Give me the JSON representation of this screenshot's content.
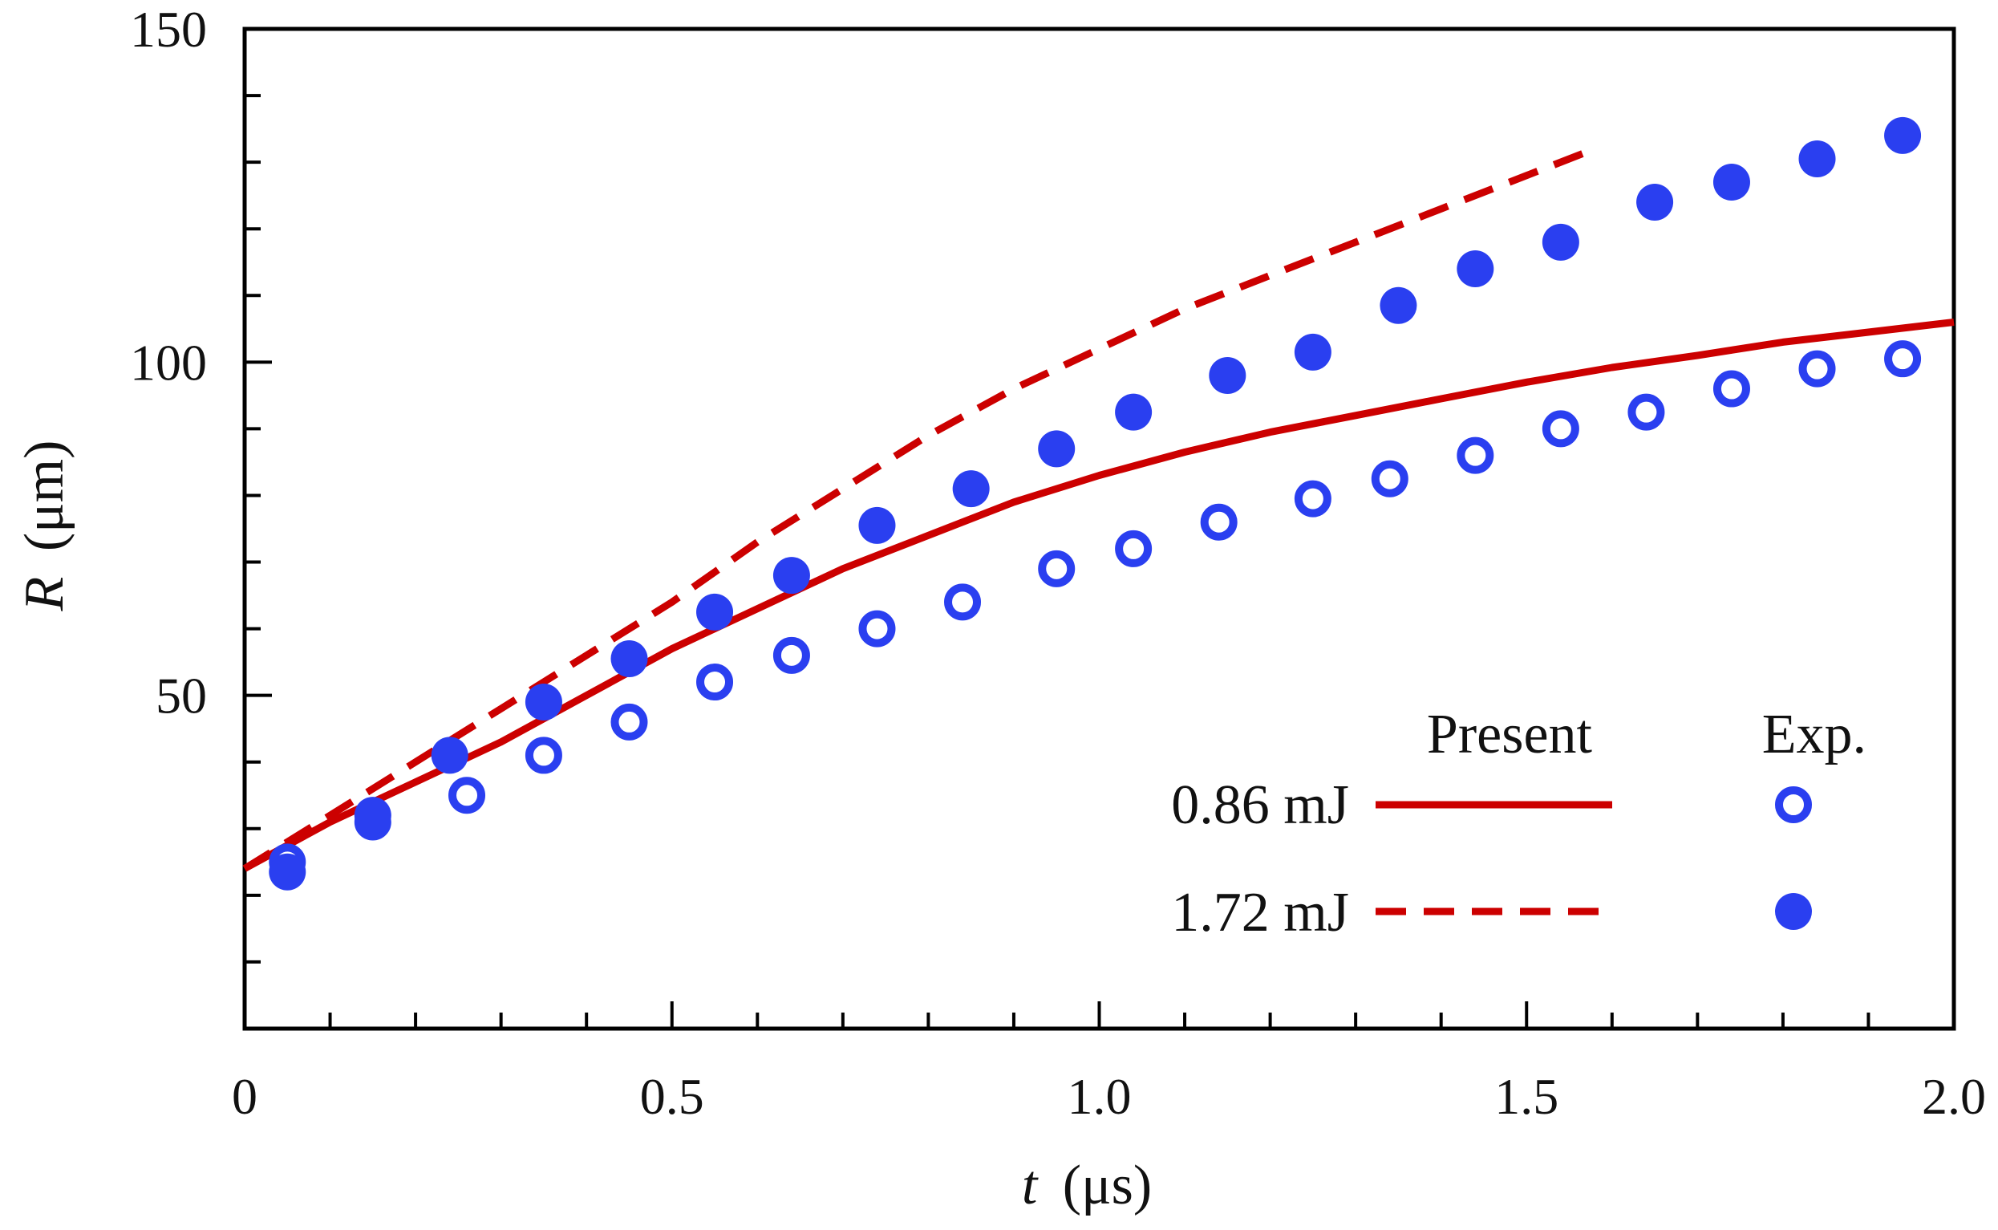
{
  "chart_data": {
    "type": "line",
    "title": "",
    "xlabel": {
      "symbol": "t",
      "unit": "(μs)"
    },
    "ylabel": {
      "symbol": "R",
      "unit": "(μm)"
    },
    "xlim": [
      0,
      2.0
    ],
    "ylim": [
      0,
      150
    ],
    "x_tick_labels": [
      "0",
      "0.5",
      "1.0",
      "1.5",
      "2.0"
    ],
    "x_tick_values": [
      0,
      0.5,
      1.0,
      1.5,
      2.0
    ],
    "y_tick_labels": [
      "50",
      "100",
      "150"
    ],
    "y_tick_values": [
      50,
      100,
      150
    ],
    "grid": false,
    "legend": {
      "placement": "bottom-right",
      "header_present": "Present",
      "header_exp": "Exp.",
      "rows": [
        "0.86 mJ",
        "1.72 mJ"
      ]
    },
    "colors": {
      "model": "#cc0000",
      "experiment": "#2a3ff0"
    },
    "series": [
      {
        "name": "0.86 mJ",
        "kind": "present",
        "style": "solid",
        "x": [
          0.0,
          0.1,
          0.2,
          0.3,
          0.4,
          0.5,
          0.6,
          0.7,
          0.8,
          0.9,
          1.0,
          1.1,
          1.2,
          1.3,
          1.4,
          1.5,
          1.6,
          1.7,
          1.8,
          1.9,
          2.0
        ],
        "y": [
          24,
          31,
          37,
          43,
          50,
          57,
          63,
          69,
          74,
          79,
          83,
          86.5,
          89.5,
          92,
          94.5,
          97,
          99.2,
          101,
          103,
          104.5,
          106
        ]
      },
      {
        "name": "1.72 mJ",
        "kind": "present",
        "style": "dashed",
        "x": [
          0.0,
          0.1,
          0.2,
          0.3,
          0.4,
          0.5,
          0.6,
          0.7,
          0.8,
          0.9,
          1.0,
          1.1,
          1.2,
          1.3,
          1.4,
          1.5,
          1.58
        ],
        "y": [
          24,
          32,
          40,
          48,
          56,
          64,
          73,
          81,
          89,
          96,
          102,
          108,
          113,
          118,
          123,
          128,
          132
        ]
      },
      {
        "name": "0.86 mJ",
        "kind": "exp",
        "marker": "open-circle",
        "x": [
          0.05,
          0.15,
          0.26,
          0.35,
          0.45,
          0.55,
          0.64,
          0.74,
          0.84,
          0.95,
          1.04,
          1.14,
          1.25,
          1.34,
          1.44,
          1.54,
          1.64,
          1.74,
          1.84,
          1.94
        ],
        "y": [
          25,
          31,
          35,
          41,
          46,
          52,
          56,
          60,
          64,
          69,
          72,
          76,
          79.5,
          82.5,
          86,
          90,
          92.5,
          96,
          99,
          100.5
        ]
      },
      {
        "name": "1.72 mJ",
        "kind": "exp",
        "marker": "filled-circle",
        "x": [
          0.05,
          0.15,
          0.24,
          0.35,
          0.45,
          0.55,
          0.64,
          0.74,
          0.85,
          0.95,
          1.04,
          1.15,
          1.25,
          1.35,
          1.44,
          1.54,
          1.65,
          1.74,
          1.84,
          1.94
        ],
        "y": [
          23.5,
          32,
          41,
          49,
          55.5,
          62.5,
          68,
          75.5,
          81,
          87,
          92.5,
          98,
          101.5,
          108.5,
          114,
          118,
          124,
          127,
          130.5,
          134
        ]
      }
    ]
  }
}
